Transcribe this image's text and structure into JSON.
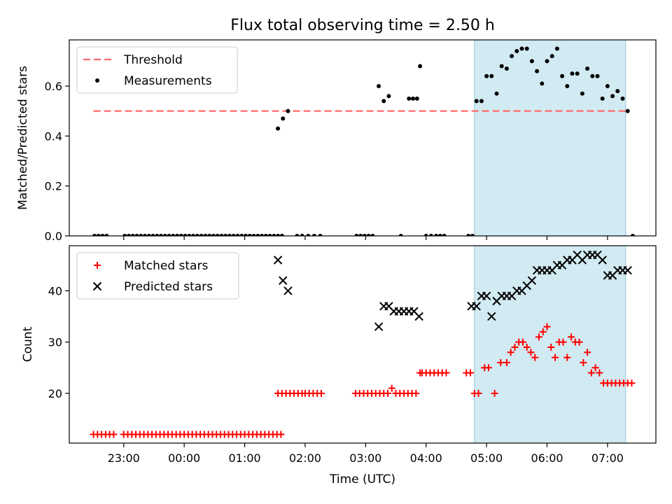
{
  "title": "Flux total observing time = 2.50 h",
  "chart_data": [
    {
      "type": "scatter",
      "xlabel": "",
      "ylabel": "Matched/Predicted stars",
      "ylim": [
        0,
        0.785
      ],
      "yticks": [
        "0.0",
        "0.2",
        "0.4",
        "0.6"
      ],
      "shaded_interval": [
        "04:48",
        "07:18"
      ],
      "shade_color": "#add8e6",
      "legend_position": "upper-left",
      "series": [
        {
          "name": "Threshold",
          "style": "dashed-line",
          "color": "#ff6a6a",
          "x": [
            "22:30",
            "07:20"
          ],
          "y": [
            0.5,
            0.5
          ]
        },
        {
          "name": "Measurements",
          "style": "dot",
          "color": "#000000",
          "x": [
            "22:31",
            "22:35",
            "22:39",
            "22:43",
            "23:01",
            "23:05",
            "23:09",
            "23:13",
            "23:17",
            "23:21",
            "23:25",
            "23:29",
            "23:33",
            "23:37",
            "23:41",
            "23:45",
            "23:49",
            "23:53",
            "23:57",
            "00:01",
            "00:05",
            "00:09",
            "00:13",
            "00:17",
            "00:21",
            "00:25",
            "00:29",
            "00:33",
            "00:37",
            "00:41",
            "00:45",
            "00:49",
            "00:53",
            "00:57",
            "01:01",
            "01:05",
            "01:09",
            "01:13",
            "01:17",
            "01:21",
            "01:25",
            "01:29",
            "01:33",
            "01:37",
            "01:33",
            "01:38",
            "01:43",
            "01:52",
            "01:57",
            "02:03",
            "02:09",
            "02:15",
            "02:51",
            "02:55",
            "02:59",
            "03:03",
            "03:07",
            "03:13",
            "03:18",
            "03:23",
            "03:35",
            "03:43",
            "03:47",
            "03:51",
            "03:54",
            "04:00",
            "04:05",
            "04:10",
            "04:14",
            "04:18",
            "04:42",
            "04:46",
            "04:50",
            "04:55",
            "05:00",
            "05:05",
            "05:10",
            "05:15",
            "05:20",
            "05:25",
            "05:30",
            "05:35",
            "05:40",
            "05:45",
            "05:50",
            "05:55",
            "06:00",
            "06:05",
            "06:10",
            "06:15",
            "06:20",
            "06:25",
            "06:30",
            "06:35",
            "06:40",
            "06:45",
            "06:50",
            "06:55",
            "07:00",
            "07:05",
            "07:10",
            "07:15",
            "07:20",
            "07:25"
          ],
          "y": [
            0,
            0,
            0,
            0,
            0,
            0,
            0,
            0,
            0,
            0,
            0,
            0,
            0,
            0,
            0,
            0,
            0,
            0,
            0,
            0,
            0,
            0,
            0,
            0,
            0,
            0,
            0,
            0,
            0,
            0,
            0,
            0,
            0,
            0,
            0,
            0,
            0,
            0,
            0,
            0,
            0,
            0,
            0,
            0,
            0.43,
            0.47,
            0.5,
            0,
            0,
            0,
            0,
            0,
            0,
            0,
            0,
            0,
            0,
            0.6,
            0.54,
            0.56,
            0,
            0.55,
            0.55,
            0.55,
            0.68,
            0,
            0,
            0,
            0,
            0,
            0,
            0,
            0.54,
            0.54,
            0.64,
            0.64,
            0.57,
            0.68,
            0.67,
            0.72,
            0.74,
            0.75,
            0.75,
            0.7,
            0.66,
            0.61,
            0.7,
            0.72,
            0.75,
            0.64,
            0.6,
            0.65,
            0.65,
            0.57,
            0.67,
            0.64,
            0.64,
            0.55,
            0.6,
            0.56,
            0.58,
            0.55,
            0.5,
            0
          ]
        }
      ]
    },
    {
      "type": "scatter",
      "xlabel": "Time (UTC)",
      "ylabel": "Count",
      "ylim": [
        10.3,
        48.8
      ],
      "yticks": [
        "20",
        "30",
        "40"
      ],
      "xticks": [
        "23:00",
        "00:00",
        "01:00",
        "02:00",
        "03:00",
        "04:00",
        "05:00",
        "06:00",
        "07:00"
      ],
      "shaded_interval": [
        "04:48",
        "07:18"
      ],
      "shade_color": "#add8e6",
      "legend_position": "upper-left",
      "series": [
        {
          "name": "Matched stars",
          "style": "plus",
          "color": "#ff0000",
          "x": [
            "22:30",
            "22:34",
            "22:38",
            "22:42",
            "22:46",
            "22:50",
            "23:00",
            "23:04",
            "23:08",
            "23:12",
            "23:16",
            "23:20",
            "23:24",
            "23:28",
            "23:32",
            "23:36",
            "23:40",
            "23:44",
            "23:48",
            "23:52",
            "23:56",
            "00:00",
            "00:04",
            "00:08",
            "00:12",
            "00:16",
            "00:20",
            "00:24",
            "00:28",
            "00:32",
            "00:36",
            "00:40",
            "00:44",
            "00:48",
            "00:52",
            "00:56",
            "01:00",
            "01:04",
            "01:08",
            "01:12",
            "01:16",
            "01:20",
            "01:24",
            "01:28",
            "01:32",
            "01:36",
            "01:33",
            "01:37",
            "01:41",
            "01:45",
            "01:49",
            "01:53",
            "01:57",
            "02:00",
            "02:04",
            "02:08",
            "02:12",
            "02:16",
            "02:50",
            "02:54",
            "02:58",
            "03:02",
            "03:06",
            "03:10",
            "03:14",
            "03:18",
            "03:22",
            "03:26",
            "03:30",
            "03:34",
            "03:38",
            "03:42",
            "03:46",
            "03:50",
            "03:54",
            "03:56",
            "04:00",
            "04:04",
            "04:08",
            "04:12",
            "04:16",
            "04:20",
            "04:40",
            "04:44",
            "04:48",
            "04:52",
            "04:58",
            "05:02",
            "05:08",
            "05:14",
            "05:20",
            "05:24",
            "05:28",
            "05:32",
            "05:36",
            "05:40",
            "05:44",
            "05:48",
            "05:52",
            "05:56",
            "06:00",
            "06:04",
            "06:08",
            "06:12",
            "06:16",
            "06:20",
            "06:24",
            "06:28",
            "06:32",
            "06:36",
            "06:40",
            "06:44",
            "06:48",
            "06:52",
            "06:56",
            "07:00",
            "07:04",
            "07:08",
            "07:12",
            "07:16",
            "07:20",
            "07:24"
          ],
          "y": [
            12,
            12,
            12,
            12,
            12,
            12,
            12,
            12,
            12,
            12,
            12,
            12,
            12,
            12,
            12,
            12,
            12,
            12,
            12,
            12,
            12,
            12,
            12,
            12,
            12,
            12,
            12,
            12,
            12,
            12,
            12,
            12,
            12,
            12,
            12,
            12,
            12,
            12,
            12,
            12,
            12,
            12,
            12,
            12,
            12,
            12,
            20,
            20,
            20,
            20,
            20,
            20,
            20,
            20,
            20,
            20,
            20,
            20,
            20,
            20,
            20,
            20,
            20,
            20,
            20,
            20,
            20,
            21,
            20,
            20,
            20,
            20,
            20,
            20,
            24,
            24,
            24,
            24,
            24,
            24,
            24,
            24,
            24,
            24,
            20,
            20,
            25,
            25,
            20,
            26,
            26,
            28,
            29,
            30,
            30,
            29,
            28,
            27,
            31,
            32,
            33,
            29,
            27,
            30,
            30,
            27,
            31,
            30,
            30,
            26,
            28,
            24,
            25,
            24,
            22,
            22,
            22,
            22,
            22,
            22,
            22,
            22
          ]
        },
        {
          "name": "Predicted stars",
          "style": "x",
          "color": "#000000",
          "x": [
            "01:33",
            "01:38",
            "01:43",
            "03:13",
            "03:18",
            "03:23",
            "03:28",
            "03:33",
            "03:38",
            "03:43",
            "03:48",
            "03:53",
            "04:45",
            "04:50",
            "04:55",
            "05:00",
            "05:05",
            "05:10",
            "05:15",
            "05:20",
            "05:25",
            "05:30",
            "05:35",
            "05:40",
            "05:45",
            "05:50",
            "05:55",
            "06:00",
            "06:05",
            "06:10",
            "06:15",
            "06:20",
            "06:25",
            "06:30",
            "06:35",
            "06:40",
            "06:45",
            "06:50",
            "06:55",
            "07:00",
            "07:05",
            "07:10",
            "07:15",
            "07:20"
          ],
          "y": [
            46,
            42,
            40,
            33,
            37,
            37,
            36,
            36,
            36,
            36,
            36,
            35,
            37,
            37,
            39,
            39,
            35,
            38,
            39,
            39,
            39,
            40,
            40,
            41,
            42,
            44,
            44,
            44,
            44,
            45,
            45,
            46,
            46,
            47,
            46,
            47,
            47,
            47,
            46,
            43,
            43,
            44,
            44,
            44
          ]
        }
      ]
    }
  ]
}
